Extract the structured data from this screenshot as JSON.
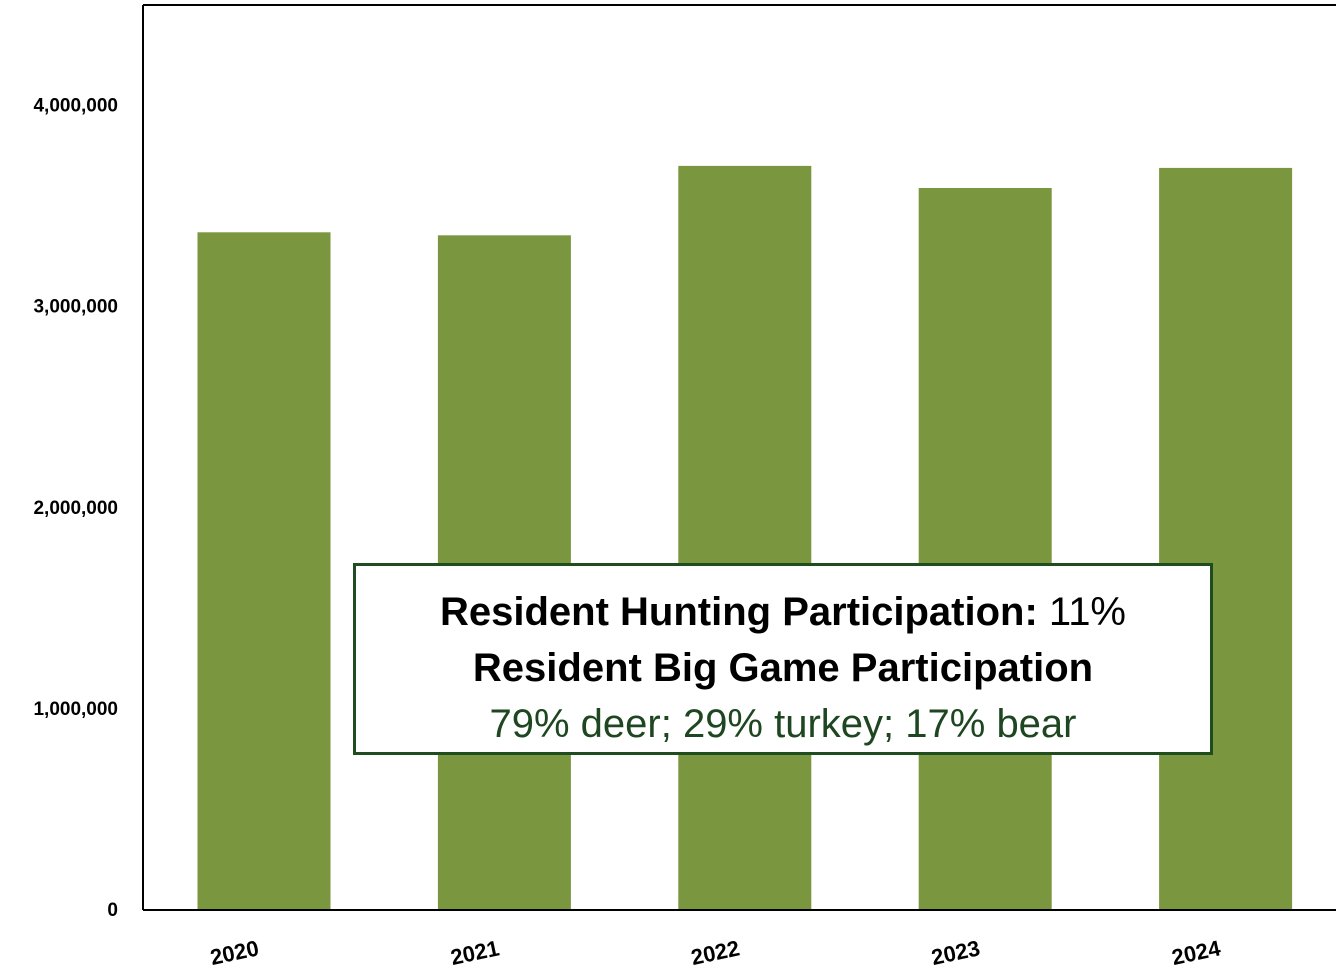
{
  "chart_data": {
    "type": "bar",
    "categories": [
      "2020",
      "2021",
      "2022",
      "2023",
      "2024"
    ],
    "values": [
      3370000,
      3355000,
      3700000,
      3590000,
      3690000
    ],
    "ylim": [
      0,
      4500000
    ],
    "yticks": [
      0,
      1000000,
      2000000,
      3000000,
      4000000
    ],
    "ytick_labels": [
      "0",
      "1,000,000",
      "2,000,000",
      "3,000,000",
      "4,000,000"
    ],
    "bar_color": "#7a963f",
    "grid": false,
    "title": "",
    "xlabel": "",
    "ylabel": ""
  },
  "callout": {
    "line1_bold": "Resident Hunting Participation:",
    "line1_value": " 11%",
    "line2": "Resident Big Game Participation",
    "line3": "79% deer; 29% turkey; 17% bear",
    "border_color": "#1f4d1f",
    "accent_color": "#1e4620"
  }
}
